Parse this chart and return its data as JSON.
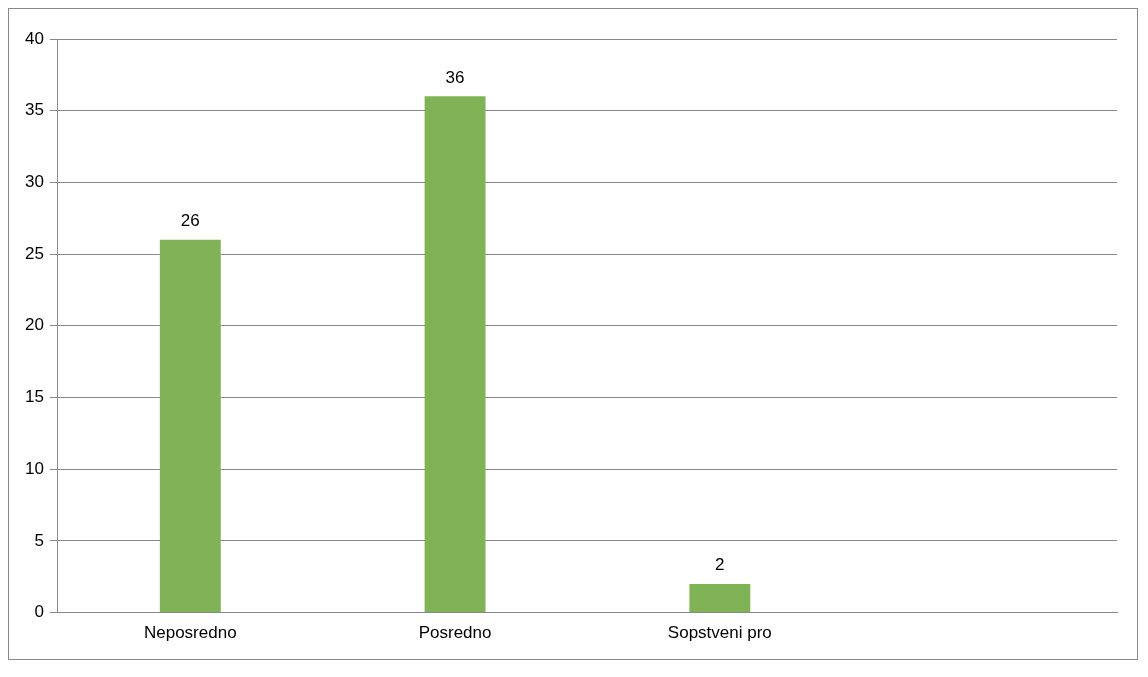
{
  "chart_data": {
    "type": "bar",
    "categories": [
      "Neposredno",
      "Posredno",
      "Sopstveni pro",
      null
    ],
    "values": [
      26,
      36,
      2,
      null
    ],
    "color": "#7fb356",
    "ylim": [
      0,
      40
    ],
    "yticks": [
      0,
      5,
      10,
      15,
      20,
      25,
      30,
      35,
      40
    ],
    "grid": "y",
    "data_labels": true,
    "legend": false
  }
}
